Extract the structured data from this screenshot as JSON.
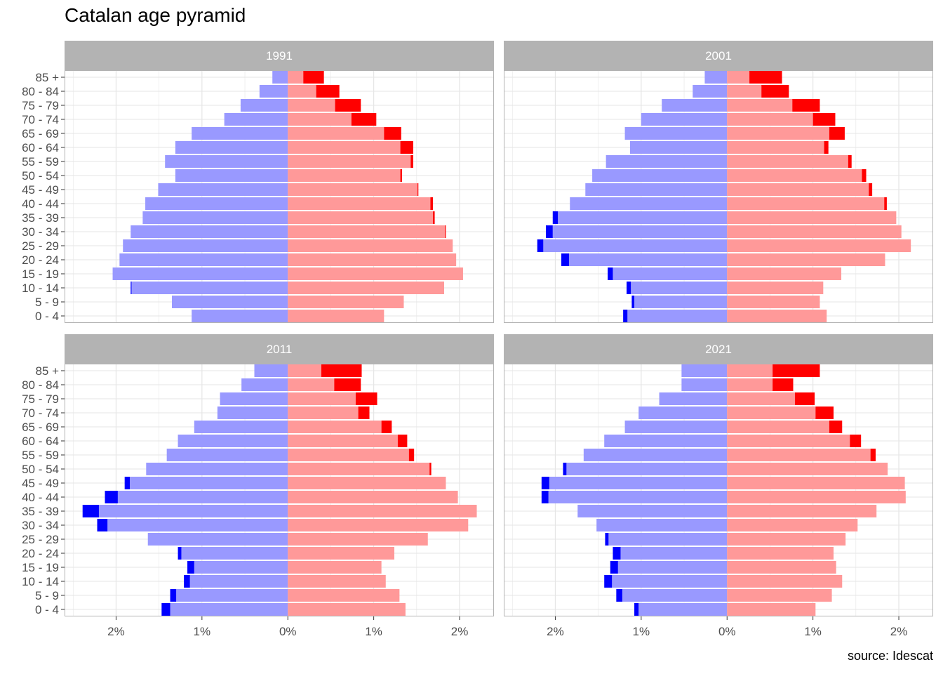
{
  "title": "Catalan age pyramid",
  "caption": "source: Idescat",
  "colors": {
    "male": "#9999FF",
    "male_excess": "#0000FF",
    "female": "#FF9999",
    "female_excess": "#FF0000",
    "strip": "#B3B3B3",
    "grid": "#E5E5E5"
  },
  "chart_data": {
    "type": "bar",
    "orientation": "horizontal",
    "categories": [
      "0 - 4",
      "5 - 9",
      "10 - 14",
      "15 - 19",
      "20 - 24",
      "25 - 29",
      "30 - 34",
      "35 - 39",
      "40 - 44",
      "45 - 49",
      "50 - 54",
      "55 - 59",
      "60 - 64",
      "65 - 69",
      "70 - 74",
      "75 - 79",
      "80 - 84",
      "85 +"
    ],
    "x_ticks": [
      {
        "value": -2,
        "label": "2%"
      },
      {
        "value": -1,
        "label": "1%"
      },
      {
        "value": 0,
        "label": "0%"
      },
      {
        "value": 1,
        "label": "1%"
      },
      {
        "value": 2,
        "label": "2%"
      }
    ],
    "xlim": [
      -2.6,
      2.4
    ],
    "panels": [
      {
        "year": "1991",
        "male": [
          1.12,
          1.35,
          1.83,
          2.04,
          1.96,
          1.92,
          1.83,
          1.69,
          1.66,
          1.51,
          1.31,
          1.43,
          1.31,
          1.12,
          0.74,
          0.55,
          0.33,
          0.18
        ],
        "female": [
          1.12,
          1.35,
          1.82,
          2.04,
          1.96,
          1.92,
          1.84,
          1.71,
          1.69,
          1.52,
          1.33,
          1.46,
          1.46,
          1.32,
          1.03,
          0.85,
          0.6,
          0.42
        ]
      },
      {
        "year": "2001",
        "male": [
          1.21,
          1.11,
          1.17,
          1.39,
          1.93,
          2.21,
          2.11,
          2.03,
          1.83,
          1.65,
          1.57,
          1.41,
          1.13,
          1.19,
          1.0,
          0.76,
          0.4,
          0.26
        ],
        "female": [
          1.16,
          1.08,
          1.12,
          1.33,
          1.84,
          2.14,
          2.03,
          1.97,
          1.86,
          1.69,
          1.62,
          1.45,
          1.18,
          1.37,
          1.26,
          1.08,
          0.72,
          0.64
        ]
      },
      {
        "year": "2011",
        "male": [
          1.47,
          1.37,
          1.21,
          1.17,
          1.28,
          1.63,
          2.22,
          2.39,
          2.13,
          1.9,
          1.65,
          1.41,
          1.28,
          1.09,
          0.82,
          0.79,
          0.54,
          0.39
        ],
        "female": [
          1.37,
          1.3,
          1.14,
          1.09,
          1.24,
          1.63,
          2.1,
          2.2,
          1.98,
          1.84,
          1.67,
          1.47,
          1.39,
          1.21,
          0.95,
          1.04,
          0.85,
          0.86
        ]
      },
      {
        "year": "2021",
        "male": [
          1.08,
          1.29,
          1.43,
          1.36,
          1.33,
          1.42,
          1.52,
          1.74,
          2.16,
          2.16,
          1.91,
          1.67,
          1.43,
          1.19,
          1.03,
          0.79,
          0.53,
          0.53
        ],
        "female": [
          1.03,
          1.22,
          1.34,
          1.27,
          1.24,
          1.38,
          1.52,
          1.74,
          2.08,
          2.07,
          1.87,
          1.73,
          1.56,
          1.34,
          1.24,
          1.02,
          0.77,
          1.08
        ]
      }
    ]
  }
}
